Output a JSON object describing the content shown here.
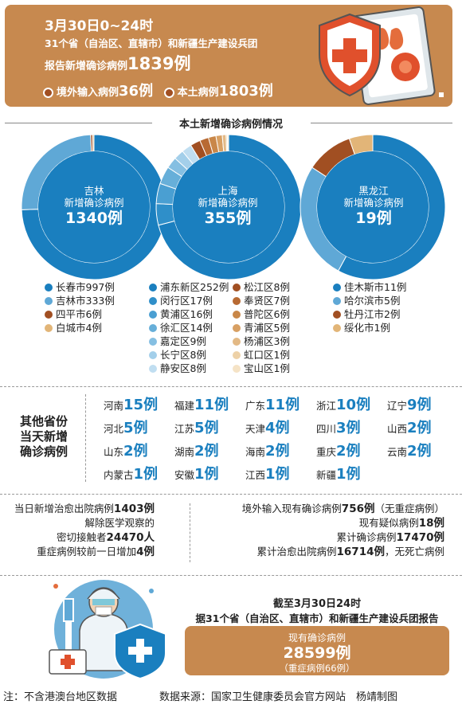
{
  "header": {
    "date_line": "3月30日0~24时",
    "scope_line": "31个省（自治区、直辖市）和新疆生产建设兵团",
    "report_prefix": "报告新增确诊病例",
    "report_value": "1839例",
    "imported_label": "境外输入病例",
    "imported_value": "36例",
    "local_label": "本土病例",
    "local_value": "1803例"
  },
  "section_title": "本土新增确诊病例情况",
  "chart_data": [
    {
      "type": "pie",
      "name": "吉林",
      "center_label": [
        "吉林",
        "新增确诊病例"
      ],
      "center_value": "1340例",
      "labels": [
        "长春市",
        "吉林市",
        "四平市",
        "白城市"
      ],
      "values": [
        997,
        333,
        6,
        4
      ],
      "colors": [
        "#1a7fbf",
        "#5fa8d6",
        "#a14f22",
        "#e2b578"
      ]
    },
    {
      "type": "pie",
      "name": "上海",
      "center_label": [
        "上海",
        "新增确诊病例"
      ],
      "center_value": "355例",
      "labels": [
        "浦东新区",
        "闵行区",
        "黄浦区",
        "徐汇区",
        "嘉定区",
        "长宁区",
        "静安区",
        "松江区",
        "奉贤区",
        "普陀区",
        "青浦区",
        "杨浦区",
        "虹口区",
        "宝山区"
      ],
      "values": [
        252,
        17,
        16,
        14,
        9,
        8,
        8,
        8,
        7,
        6,
        5,
        3,
        1,
        1
      ],
      "colors": [
        "#1a7fbf",
        "#2f8fc9",
        "#4a9fd2",
        "#67afd9",
        "#85bfe2",
        "#a3cfea",
        "#c0def1",
        "#a14f22",
        "#b86a33",
        "#c98748",
        "#d8a063",
        "#e3b985",
        "#edd1a7",
        "#f5e3c6"
      ]
    },
    {
      "type": "pie",
      "name": "黑龙江",
      "center_label": [
        "黑龙江",
        "新增确诊病例"
      ],
      "center_value": "19例",
      "labels": [
        "佳木斯市",
        "哈尔滨市",
        "牡丹江市",
        "绥化市"
      ],
      "values": [
        11,
        5,
        2,
        1
      ],
      "colors": [
        "#1a7fbf",
        "#5fa8d6",
        "#a14f22",
        "#e2b578"
      ]
    }
  ],
  "provinces": {
    "label": [
      "其他省份",
      "当天新增",
      "确诊病例"
    ],
    "items": [
      {
        "name": "河南",
        "value": "15例"
      },
      {
        "name": "福建",
        "value": "11例"
      },
      {
        "name": "广东",
        "value": "11例"
      },
      {
        "name": "浙江",
        "value": "10例"
      },
      {
        "name": "辽宁",
        "value": "9例"
      },
      {
        "name": "河北",
        "value": "5例"
      },
      {
        "name": "江苏",
        "value": "5例"
      },
      {
        "name": "天津",
        "value": "4例"
      },
      {
        "name": "四川",
        "value": "3例"
      },
      {
        "name": "山西",
        "value": "2例"
      },
      {
        "name": "山东",
        "value": "2例"
      },
      {
        "name": "湖南",
        "value": "2例"
      },
      {
        "name": "海南",
        "value": "2例"
      },
      {
        "name": "重庆",
        "value": "2例"
      },
      {
        "name": "云南",
        "value": "2例"
      },
      {
        "name": "内蒙古",
        "value": "1例"
      },
      {
        "name": "安徽",
        "value": "1例"
      },
      {
        "name": "江西",
        "value": "1例"
      },
      {
        "name": "新疆",
        "value": "1例"
      }
    ]
  },
  "left_stats": [
    {
      "pre": "当日新增治愈出院病例",
      "val": "1403例",
      "post": ""
    },
    {
      "pre": "解除医学观察的",
      "val": "",
      "post": ""
    },
    {
      "pre": "密切接触者",
      "val": "24470人",
      "post": ""
    },
    {
      "pre": "重症病例较前一日增加",
      "val": "4例",
      "post": ""
    }
  ],
  "right_stats": [
    {
      "pre": "境外输入现有确诊病例",
      "val": "756例",
      "post": "（无重症病例）"
    },
    {
      "pre": "现有疑似病例",
      "val": "18例",
      "post": ""
    },
    {
      "pre": "累计确诊病例",
      "val": "17470例",
      "post": ""
    },
    {
      "pre": "累计治愈出院病例",
      "val": "16714例",
      "post": "，无死亡病例"
    }
  ],
  "summary": {
    "line1": "截至3月30日24时",
    "line2": "据31个省（自治区、直辖市）和新疆生产建设兵团报告",
    "box_label": "现有确诊病例",
    "box_value": "28599例",
    "box_note": "（重症病例66例）"
  },
  "footer": {
    "note": "注：不含港澳台地区数据",
    "source": "数据来源：国家卫生健康委员会官方网站　杨靖制图"
  }
}
